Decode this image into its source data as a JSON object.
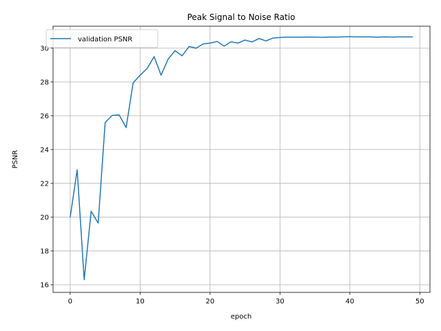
{
  "chart_data": {
    "type": "line",
    "title": "Peak Signal to Noise Ratio",
    "xlabel": "epoch",
    "ylabel": "PSNR",
    "xlim": [
      -2.45,
      51.45
    ],
    "ylim": [
      15.55,
      31.3
    ],
    "xticks": [
      0,
      10,
      20,
      30,
      40,
      50
    ],
    "yticks": [
      16,
      18,
      20,
      22,
      24,
      26,
      28,
      30
    ],
    "grid": true,
    "legend_position": "upper-left",
    "series": [
      {
        "name": "validation PSNR",
        "color": "#1f77b4",
        "x": [
          0,
          1,
          2,
          3,
          4,
          5,
          6,
          7,
          8,
          9,
          10,
          11,
          12,
          13,
          14,
          15,
          16,
          17,
          18,
          19,
          20,
          21,
          22,
          23,
          24,
          25,
          26,
          27,
          28,
          29,
          30,
          31,
          32,
          33,
          34,
          35,
          36,
          37,
          38,
          39,
          40,
          41,
          42,
          43,
          44,
          45,
          46,
          47,
          48,
          49
        ],
        "values": [
          20.0,
          22.8,
          16.3,
          20.35,
          19.65,
          25.6,
          26.02,
          26.05,
          25.3,
          27.95,
          28.4,
          28.8,
          29.5,
          28.4,
          29.35,
          29.85,
          29.55,
          30.1,
          30.0,
          30.25,
          30.3,
          30.4,
          30.12,
          30.38,
          30.3,
          30.48,
          30.37,
          30.57,
          30.43,
          30.6,
          30.63,
          30.65,
          30.65,
          30.65,
          30.66,
          30.66,
          30.64,
          30.66,
          30.66,
          30.67,
          30.68,
          30.67,
          30.67,
          30.67,
          30.65,
          30.67,
          30.66,
          30.67,
          30.67,
          30.67
        ]
      }
    ]
  }
}
